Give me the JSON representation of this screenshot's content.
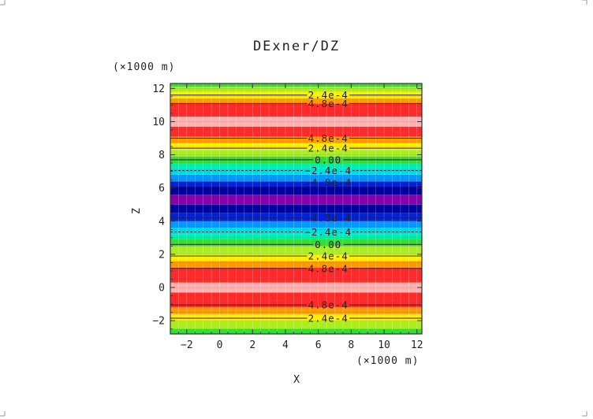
{
  "chart_data": {
    "type": "heatmap",
    "title": "DExner/DZ",
    "xlabel": "X",
    "ylabel": "Z",
    "x_unit": "(×1000 m)",
    "y_unit": "(×1000 m)",
    "xlim": [
      -3,
      12.3
    ],
    "ylim": [
      -2.8,
      12.3
    ],
    "x_ticks": [
      -2,
      0,
      2,
      4,
      6,
      8,
      10,
      12
    ],
    "y_ticks": [
      -2,
      0,
      2,
      4,
      6,
      8,
      10,
      12
    ],
    "x_tick_labels": [
      "−2",
      "0",
      "2",
      "4",
      "6",
      "8",
      "10",
      "12"
    ],
    "y_tick_labels": [
      "−2",
      "0",
      "2",
      "4",
      "6",
      "8",
      "10",
      "12"
    ],
    "grid": true,
    "bands": [
      {
        "z0": -2.8,
        "z1": -2.5,
        "color": "#33dd33"
      },
      {
        "z0": -2.5,
        "z1": -2.0,
        "color": "#aaee22"
      },
      {
        "z0": -2.0,
        "z1": -1.6,
        "color": "#ffee00"
      },
      {
        "z0": -1.6,
        "z1": -1.2,
        "color": "#ff9900"
      },
      {
        "z0": -1.2,
        "z1": -0.3,
        "color": "#ff2a2a"
      },
      {
        "z0": -0.3,
        "z1": 0.3,
        "color": "#ffb0b0"
      },
      {
        "z0": 0.3,
        "z1": 1.2,
        "color": "#ff2a2a"
      },
      {
        "z0": 1.2,
        "z1": 1.6,
        "color": "#ff9900"
      },
      {
        "z0": 1.6,
        "z1": 2.0,
        "color": "#ffee00"
      },
      {
        "z0": 2.0,
        "z1": 2.5,
        "color": "#aaee22"
      },
      {
        "z0": 2.5,
        "z1": 2.9,
        "color": "#33dd33"
      },
      {
        "z0": 2.9,
        "z1": 3.2,
        "color": "#00eeaa"
      },
      {
        "z0": 3.2,
        "z1": 3.6,
        "color": "#00dddd"
      },
      {
        "z0": 3.6,
        "z1": 4.0,
        "color": "#0099ff"
      },
      {
        "z0": 4.0,
        "z1": 4.5,
        "color": "#0022dd"
      },
      {
        "z0": 4.5,
        "z1": 5.0,
        "color": "#00009e"
      },
      {
        "z0": 5.0,
        "z1": 5.6,
        "color": "#8800aa"
      },
      {
        "z0": 5.6,
        "z1": 6.1,
        "color": "#00009e"
      },
      {
        "z0": 6.1,
        "z1": 6.4,
        "color": "#0022dd"
      },
      {
        "z0": 6.4,
        "z1": 6.8,
        "color": "#0099ff"
      },
      {
        "z0": 6.8,
        "z1": 7.2,
        "color": "#00dddd"
      },
      {
        "z0": 7.2,
        "z1": 7.5,
        "color": "#00eeaa"
      },
      {
        "z0": 7.5,
        "z1": 7.9,
        "color": "#33dd33"
      },
      {
        "z0": 7.9,
        "z1": 8.3,
        "color": "#aaee22"
      },
      {
        "z0": 8.3,
        "z1": 8.7,
        "color": "#ffee00"
      },
      {
        "z0": 8.7,
        "z1": 9.1,
        "color": "#ff9900"
      },
      {
        "z0": 9.1,
        "z1": 9.7,
        "color": "#ff2a2a"
      },
      {
        "z0": 9.7,
        "z1": 10.3,
        "color": "#ffb0b0"
      },
      {
        "z0": 10.3,
        "z1": 11.1,
        "color": "#ff2a2a"
      },
      {
        "z0": 11.1,
        "z1": 11.4,
        "color": "#ff9900"
      },
      {
        "z0": 11.4,
        "z1": 11.8,
        "color": "#ffee00"
      },
      {
        "z0": 11.8,
        "z1": 12.1,
        "color": "#aaee22"
      },
      {
        "z0": 12.1,
        "z1": 12.3,
        "color": "#33dd33"
      }
    ],
    "contours": [
      {
        "z": 11.6,
        "label": "2.4e-4",
        "dashed": false
      },
      {
        "z": 11.1,
        "label": "4.8e-4",
        "dashed": false
      },
      {
        "z": 9.0,
        "label": "4.8e-4",
        "dashed": false
      },
      {
        "z": 8.4,
        "label": "2.4e-4",
        "dashed": false
      },
      {
        "z": 7.7,
        "label": "0.00",
        "dashed": false
      },
      {
        "z": 7.05,
        "label": "−2.4e-4",
        "dashed": true
      },
      {
        "z": 6.35,
        "label": "−4.8e-4",
        "dashed": true
      },
      {
        "z": 4.2,
        "label": "−4.8e-4",
        "dashed": true
      },
      {
        "z": 3.35,
        "label": "−2.4e-4",
        "dashed": true
      },
      {
        "z": 2.6,
        "label": "0.00",
        "dashed": false
      },
      {
        "z": 1.9,
        "label": "2.4e-4",
        "dashed": false
      },
      {
        "z": 1.15,
        "label": "4.8e-4",
        "dashed": false
      },
      {
        "z": -1.05,
        "label": "4.8e-4",
        "dashed": false
      },
      {
        "z": -1.85,
        "label": "2.4e-4",
        "dashed": false
      }
    ]
  }
}
